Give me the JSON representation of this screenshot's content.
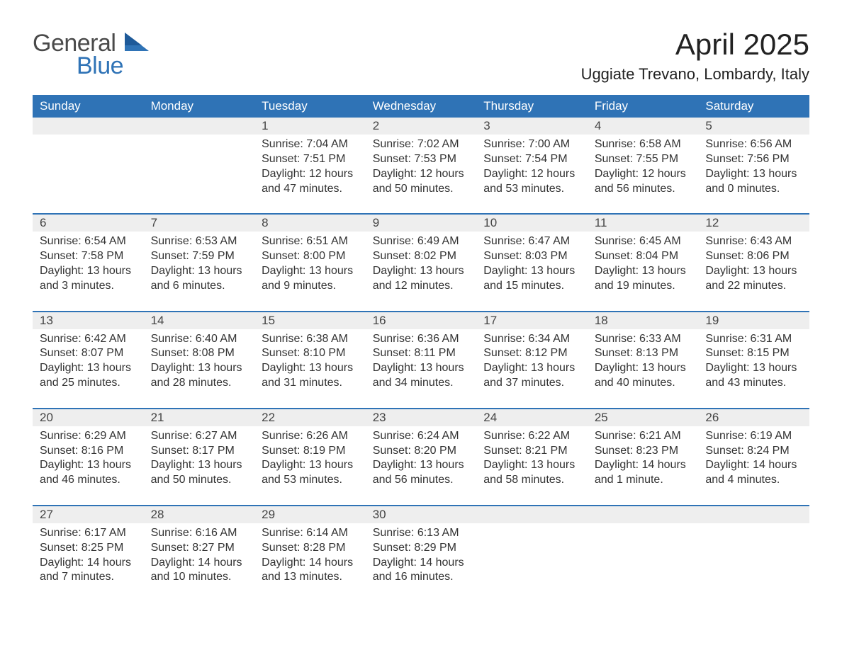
{
  "logo": {
    "general": "General",
    "blue": "Blue"
  },
  "title": "April 2025",
  "location": "Uggiate Trevano, Lombardy, Italy",
  "colors": {
    "header_bg": "#2f73b6",
    "header_text": "#ffffff",
    "day_number_bg": "#eeeeee",
    "row_divider": "#2f73b6",
    "body_text": "#333333",
    "page_bg": "#ffffff",
    "logo_gray": "#4a4a4a",
    "logo_blue": "#2f73b6"
  },
  "typography": {
    "month_title_fontsize": 42,
    "location_fontsize": 22,
    "weekday_fontsize": 17,
    "day_number_fontsize": 17,
    "cell_fontsize": 16,
    "logo_fontsize": 34
  },
  "weekdays": [
    "Sunday",
    "Monday",
    "Tuesday",
    "Wednesday",
    "Thursday",
    "Friday",
    "Saturday"
  ],
  "weeks": [
    [
      null,
      null,
      {
        "n": "1",
        "sunrise": "Sunrise: 7:04 AM",
        "sunset": "Sunset: 7:51 PM",
        "daylight": "Daylight: 12 hours and 47 minutes."
      },
      {
        "n": "2",
        "sunrise": "Sunrise: 7:02 AM",
        "sunset": "Sunset: 7:53 PM",
        "daylight": "Daylight: 12 hours and 50 minutes."
      },
      {
        "n": "3",
        "sunrise": "Sunrise: 7:00 AM",
        "sunset": "Sunset: 7:54 PM",
        "daylight": "Daylight: 12 hours and 53 minutes."
      },
      {
        "n": "4",
        "sunrise": "Sunrise: 6:58 AM",
        "sunset": "Sunset: 7:55 PM",
        "daylight": "Daylight: 12 hours and 56 minutes."
      },
      {
        "n": "5",
        "sunrise": "Sunrise: 6:56 AM",
        "sunset": "Sunset: 7:56 PM",
        "daylight": "Daylight: 13 hours and 0 minutes."
      }
    ],
    [
      {
        "n": "6",
        "sunrise": "Sunrise: 6:54 AM",
        "sunset": "Sunset: 7:58 PM",
        "daylight": "Daylight: 13 hours and 3 minutes."
      },
      {
        "n": "7",
        "sunrise": "Sunrise: 6:53 AM",
        "sunset": "Sunset: 7:59 PM",
        "daylight": "Daylight: 13 hours and 6 minutes."
      },
      {
        "n": "8",
        "sunrise": "Sunrise: 6:51 AM",
        "sunset": "Sunset: 8:00 PM",
        "daylight": "Daylight: 13 hours and 9 minutes."
      },
      {
        "n": "9",
        "sunrise": "Sunrise: 6:49 AM",
        "sunset": "Sunset: 8:02 PM",
        "daylight": "Daylight: 13 hours and 12 minutes."
      },
      {
        "n": "10",
        "sunrise": "Sunrise: 6:47 AM",
        "sunset": "Sunset: 8:03 PM",
        "daylight": "Daylight: 13 hours and 15 minutes."
      },
      {
        "n": "11",
        "sunrise": "Sunrise: 6:45 AM",
        "sunset": "Sunset: 8:04 PM",
        "daylight": "Daylight: 13 hours and 19 minutes."
      },
      {
        "n": "12",
        "sunrise": "Sunrise: 6:43 AM",
        "sunset": "Sunset: 8:06 PM",
        "daylight": "Daylight: 13 hours and 22 minutes."
      }
    ],
    [
      {
        "n": "13",
        "sunrise": "Sunrise: 6:42 AM",
        "sunset": "Sunset: 8:07 PM",
        "daylight": "Daylight: 13 hours and 25 minutes."
      },
      {
        "n": "14",
        "sunrise": "Sunrise: 6:40 AM",
        "sunset": "Sunset: 8:08 PM",
        "daylight": "Daylight: 13 hours and 28 minutes."
      },
      {
        "n": "15",
        "sunrise": "Sunrise: 6:38 AM",
        "sunset": "Sunset: 8:10 PM",
        "daylight": "Daylight: 13 hours and 31 minutes."
      },
      {
        "n": "16",
        "sunrise": "Sunrise: 6:36 AM",
        "sunset": "Sunset: 8:11 PM",
        "daylight": "Daylight: 13 hours and 34 minutes."
      },
      {
        "n": "17",
        "sunrise": "Sunrise: 6:34 AM",
        "sunset": "Sunset: 8:12 PM",
        "daylight": "Daylight: 13 hours and 37 minutes."
      },
      {
        "n": "18",
        "sunrise": "Sunrise: 6:33 AM",
        "sunset": "Sunset: 8:13 PM",
        "daylight": "Daylight: 13 hours and 40 minutes."
      },
      {
        "n": "19",
        "sunrise": "Sunrise: 6:31 AM",
        "sunset": "Sunset: 8:15 PM",
        "daylight": "Daylight: 13 hours and 43 minutes."
      }
    ],
    [
      {
        "n": "20",
        "sunrise": "Sunrise: 6:29 AM",
        "sunset": "Sunset: 8:16 PM",
        "daylight": "Daylight: 13 hours and 46 minutes."
      },
      {
        "n": "21",
        "sunrise": "Sunrise: 6:27 AM",
        "sunset": "Sunset: 8:17 PM",
        "daylight": "Daylight: 13 hours and 50 minutes."
      },
      {
        "n": "22",
        "sunrise": "Sunrise: 6:26 AM",
        "sunset": "Sunset: 8:19 PM",
        "daylight": "Daylight: 13 hours and 53 minutes."
      },
      {
        "n": "23",
        "sunrise": "Sunrise: 6:24 AM",
        "sunset": "Sunset: 8:20 PM",
        "daylight": "Daylight: 13 hours and 56 minutes."
      },
      {
        "n": "24",
        "sunrise": "Sunrise: 6:22 AM",
        "sunset": "Sunset: 8:21 PM",
        "daylight": "Daylight: 13 hours and 58 minutes."
      },
      {
        "n": "25",
        "sunrise": "Sunrise: 6:21 AM",
        "sunset": "Sunset: 8:23 PM",
        "daylight": "Daylight: 14 hours and 1 minute."
      },
      {
        "n": "26",
        "sunrise": "Sunrise: 6:19 AM",
        "sunset": "Sunset: 8:24 PM",
        "daylight": "Daylight: 14 hours and 4 minutes."
      }
    ],
    [
      {
        "n": "27",
        "sunrise": "Sunrise: 6:17 AM",
        "sunset": "Sunset: 8:25 PM",
        "daylight": "Daylight: 14 hours and 7 minutes."
      },
      {
        "n": "28",
        "sunrise": "Sunrise: 6:16 AM",
        "sunset": "Sunset: 8:27 PM",
        "daylight": "Daylight: 14 hours and 10 minutes."
      },
      {
        "n": "29",
        "sunrise": "Sunrise: 6:14 AM",
        "sunset": "Sunset: 8:28 PM",
        "daylight": "Daylight: 14 hours and 13 minutes."
      },
      {
        "n": "30",
        "sunrise": "Sunrise: 6:13 AM",
        "sunset": "Sunset: 8:29 PM",
        "daylight": "Daylight: 14 hours and 16 minutes."
      },
      null,
      null,
      null
    ]
  ]
}
